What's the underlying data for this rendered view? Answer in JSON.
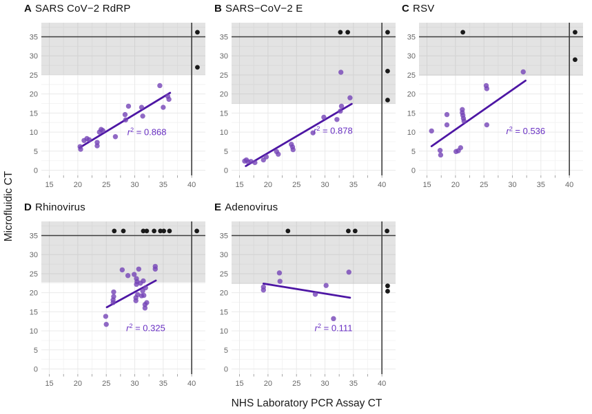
{
  "figure": {
    "x_axis_title": "NHS Laboratory PCR Assay CT",
    "y_axis_title": "Microfluidic CT"
  },
  "colors": {
    "point": "#7443b6",
    "excluded_point": "#1a1a1a",
    "regression_line": "#4d16a4",
    "r2_text": "#6930c3",
    "threshold_band": "#7f7f7f",
    "grid_major": "#e9e9e9",
    "grid_minor": "#f4f4f4",
    "reference_line": "#3d3d3d",
    "tick_label": "#666666"
  },
  "chart_data": {
    "type": "scatter",
    "xlabel": "NHS Laboratory PCR Assay CT",
    "ylabel": "Microfluidic CT",
    "x_ticks": [
      15,
      20,
      25,
      30,
      35,
      40
    ],
    "y_ticks": [
      0,
      5,
      10,
      15,
      20,
      25,
      30,
      35
    ],
    "x_range": [
      13.6,
      42.4
    ],
    "y_range": [
      -1.35,
      38.7
    ],
    "grid": true,
    "hline_y": 35,
    "vline_x": 40,
    "legend": "none",
    "panels": [
      {
        "letter": "A",
        "title": "SARS CoV−2 RdRP",
        "r2": "0.868",
        "r2_pos": [
          28.7,
          9.2
        ],
        "band_ymin": 25,
        "regression": [
          20.3,
          5.9,
          36.2,
          20.3
        ],
        "points": [
          [
            20.4,
            6.2
          ],
          [
            20.5,
            5.5
          ],
          [
            21.1,
            7.8
          ],
          [
            21.6,
            8.3
          ],
          [
            22.0,
            8.0
          ],
          [
            23.4,
            7.3
          ],
          [
            23.4,
            6.4
          ],
          [
            23.8,
            10.0
          ],
          [
            24.1,
            10.7
          ],
          [
            24.4,
            10.4
          ],
          [
            26.6,
            8.8
          ],
          [
            28.3,
            14.6
          ],
          [
            28.4,
            13.2
          ],
          [
            28.9,
            16.8
          ],
          [
            31.2,
            16.5
          ],
          [
            31.4,
            14.2
          ],
          [
            34.4,
            22.2
          ],
          [
            35.0,
            16.5
          ],
          [
            35.8,
            19.4
          ],
          [
            36.0,
            18.6
          ]
        ],
        "excluded_points": [
          [
            41.0,
            36.2
          ],
          [
            41.0,
            27.0
          ]
        ]
      },
      {
        "letter": "B",
        "title": "SARS−CoV−2 E",
        "r2": "0.878",
        "r2_pos": [
          28.0,
          9.6
        ],
        "band_ymin": 17.4,
        "regression": [
          16.1,
          1.1,
          34.7,
          17.4
        ],
        "points": [
          [
            15.9,
            2.4
          ],
          [
            16.2,
            2.7
          ],
          [
            16.5,
            2.2
          ],
          [
            17.0,
            2.3
          ],
          [
            17.7,
            2.0
          ],
          [
            19.2,
            2.7
          ],
          [
            19.7,
            3.5
          ],
          [
            21.5,
            4.9
          ],
          [
            21.8,
            4.2
          ],
          [
            24.1,
            6.8
          ],
          [
            24.3,
            6.1
          ],
          [
            24.4,
            5.4
          ],
          [
            27.9,
            9.8
          ],
          [
            29.8,
            13.9
          ],
          [
            32.1,
            13.3
          ],
          [
            32.7,
            15.5
          ],
          [
            32.9,
            16.8
          ],
          [
            32.8,
            25.7
          ],
          [
            34.4,
            19.0
          ]
        ],
        "excluded_points": [
          [
            32.7,
            36.2
          ],
          [
            34.0,
            36.2
          ],
          [
            41.0,
            36.2
          ],
          [
            41.0,
            26.0
          ],
          [
            41.0,
            18.4
          ]
        ]
      },
      {
        "letter": "C",
        "title": "RSV",
        "r2": "0.536",
        "r2_pos": [
          28.9,
          9.5
        ],
        "band_ymin": 24.8,
        "regression": [
          15.8,
          6.3,
          32.3,
          23.5
        ],
        "points": [
          [
            15.8,
            10.3
          ],
          [
            17.3,
            5.2
          ],
          [
            17.4,
            4.0
          ],
          [
            18.5,
            14.6
          ],
          [
            18.5,
            11.9
          ],
          [
            20.1,
            4.9
          ],
          [
            20.5,
            5.1
          ],
          [
            20.9,
            5.9
          ],
          [
            21.2,
            15.9
          ],
          [
            21.2,
            15.1
          ],
          [
            21.3,
            14.4
          ],
          [
            21.4,
            13.6
          ],
          [
            21.5,
            12.9
          ],
          [
            25.4,
            22.2
          ],
          [
            25.5,
            21.4
          ],
          [
            25.5,
            11.9
          ],
          [
            31.9,
            25.8
          ]
        ],
        "excluded_points": [
          [
            21.3,
            36.2
          ],
          [
            41.0,
            36.2
          ],
          [
            41.0,
            29.0
          ]
        ]
      },
      {
        "letter": "D",
        "title": "Rhinovirus",
        "r2": "0.325",
        "r2_pos": [
          28.5,
          9.9
        ],
        "band_ymin": 22.7,
        "regression": [
          25.1,
          16.2,
          33.7,
          23.2
        ],
        "points": [
          [
            24.9,
            13.8
          ],
          [
            25.0,
            11.7
          ],
          [
            26.3,
            20.2
          ],
          [
            26.3,
            19.0
          ],
          [
            26.2,
            18.1
          ],
          [
            26.2,
            17.4
          ],
          [
            27.8,
            26.0
          ],
          [
            28.8,
            24.5
          ],
          [
            29.9,
            24.8
          ],
          [
            30.3,
            23.7
          ],
          [
            30.4,
            22.9
          ],
          [
            30.3,
            22.2
          ],
          [
            30.2,
            18.7
          ],
          [
            30.2,
            17.9
          ],
          [
            30.5,
            19.5
          ],
          [
            30.7,
            26.2
          ],
          [
            31.0,
            22.5
          ],
          [
            31.2,
            19.2
          ],
          [
            31.4,
            20.5
          ],
          [
            31.5,
            23.1
          ],
          [
            31.6,
            19.3
          ],
          [
            31.9,
            21.3
          ],
          [
            31.8,
            16.9
          ],
          [
            31.8,
            16.0
          ],
          [
            32.1,
            17.4
          ],
          [
            33.6,
            26.9
          ],
          [
            33.6,
            26.2
          ]
        ],
        "excluded_points": [
          [
            26.4,
            36.2
          ],
          [
            28.0,
            36.2
          ],
          [
            31.5,
            36.2
          ],
          [
            32.1,
            36.2
          ],
          [
            33.4,
            36.2
          ],
          [
            34.5,
            36.2
          ],
          [
            35.1,
            36.2
          ],
          [
            36.1,
            36.2
          ],
          [
            40.9,
            36.2
          ]
        ]
      },
      {
        "letter": "E",
        "title": "Adenovirus",
        "r2": "0.111",
        "r2_pos": [
          28.2,
          9.9
        ],
        "band_ymin": 22.3,
        "regression": [
          19.2,
          22.4,
          34.4,
          18.7
        ],
        "points": [
          [
            19.2,
            21.5
          ],
          [
            19.2,
            20.7
          ],
          [
            22.0,
            25.2
          ],
          [
            22.1,
            23.0
          ],
          [
            28.3,
            19.6
          ],
          [
            30.2,
            21.9
          ],
          [
            31.5,
            13.2
          ],
          [
            34.2,
            25.4
          ]
        ],
        "excluded_points": [
          [
            23.5,
            36.2
          ],
          [
            34.1,
            36.2
          ],
          [
            35.3,
            36.2
          ],
          [
            40.9,
            36.2
          ],
          [
            41.0,
            21.8
          ],
          [
            41.0,
            20.4
          ]
        ]
      }
    ]
  }
}
